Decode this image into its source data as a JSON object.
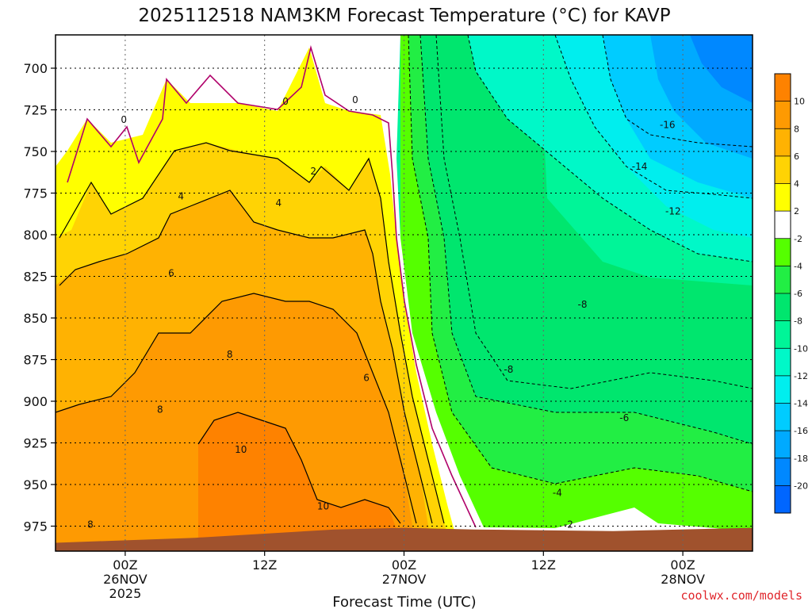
{
  "chart_data": {
    "type": "heatmap",
    "title": "2025112518 NAM3KM Forecast Temperature (°C) for KAVP",
    "xlabel": "Forecast Time (UTC)",
    "ylabel": "",
    "y_ticks": [
      "700",
      "725",
      "750",
      "775",
      "800",
      "825",
      "850",
      "875",
      "900",
      "925",
      "950",
      "975"
    ],
    "y_values": [
      700,
      725,
      750,
      775,
      800,
      825,
      850,
      875,
      900,
      925,
      950,
      975
    ],
    "ylim": [
      680,
      990
    ],
    "y_inverted": true,
    "x_range_hours": [
      -5,
      45
    ],
    "x_ticks": [
      {
        "hour": 0,
        "line1": "00Z",
        "line2": "26NOV",
        "line3": "2025"
      },
      {
        "hour": 10,
        "line1": "12Z",
        "line2": "",
        "line3": ""
      },
      {
        "hour": 20,
        "line1": "00Z",
        "line2": "27NOV",
        "line3": ""
      },
      {
        "hour": 30,
        "line1": "12Z",
        "line2": "",
        "line3": ""
      },
      {
        "hour": 40,
        "line1": "00Z",
        "line2": "28NOV",
        "line3": ""
      }
    ],
    "colorbar": {
      "labels": [
        "10",
        "8",
        "6",
        "4",
        "2",
        "-2",
        "-4",
        "-6",
        "-8",
        "-10",
        "-12",
        "-14",
        "-16",
        "-18",
        "-20"
      ],
      "colors": [
        "#fe8200",
        "#fe9a02",
        "#ffb202",
        "#ffd304",
        "#ffff00",
        "#ffffff",
        "#55ff00",
        "#22ee44",
        "#00e66e",
        "#00f598",
        "#00f8c8",
        "#00eeee",
        "#00ccff",
        "#00aaff",
        "#0088ff",
        "#0066ff"
      ]
    },
    "contour_labels": [
      {
        "text": "0",
        "hour": -0.1,
        "p": 731
      },
      {
        "text": "0",
        "hour": 11.5,
        "p": 720
      },
      {
        "text": "0",
        "hour": 16.5,
        "p": 719
      },
      {
        "text": "2",
        "hour": 13.5,
        "p": 762
      },
      {
        "text": "4",
        "hour": 4,
        "p": 777
      },
      {
        "text": "4",
        "hour": 11,
        "p": 781
      },
      {
        "text": "6",
        "hour": 3.3,
        "p": 823
      },
      {
        "text": "6",
        "hour": 17.3,
        "p": 886
      },
      {
        "text": "8",
        "hour": 7.5,
        "p": 872
      },
      {
        "text": "8",
        "hour": 2.5,
        "p": 905
      },
      {
        "text": "8",
        "hour": -2.5,
        "p": 974
      },
      {
        "text": "10",
        "hour": 8.3,
        "p": 929
      },
      {
        "text": "10",
        "hour": 14.2,
        "p": 963
      },
      {
        "text": "-2",
        "hour": 31.8,
        "p": 974
      },
      {
        "text": "-4",
        "hour": 31,
        "p": 955
      },
      {
        "text": "-6",
        "hour": 35.8,
        "p": 910
      },
      {
        "text": "-8",
        "hour": 27.5,
        "p": 881
      },
      {
        "text": "-8",
        "hour": 32.8,
        "p": 842
      },
      {
        "text": "-12",
        "hour": 39.3,
        "p": 786
      },
      {
        "text": "-14",
        "hour": 36.9,
        "p": 759
      },
      {
        "text": "-16",
        "hour": 38.9,
        "p": 734
      }
    ],
    "surface_pressure_profile": [
      [
        -5,
        985
      ],
      [
        5,
        982
      ],
      [
        15,
        977
      ],
      [
        20,
        976
      ],
      [
        25,
        977
      ],
      [
        35,
        978
      ],
      [
        45,
        976
      ]
    ],
    "credit": "coolwx.com/models"
  }
}
